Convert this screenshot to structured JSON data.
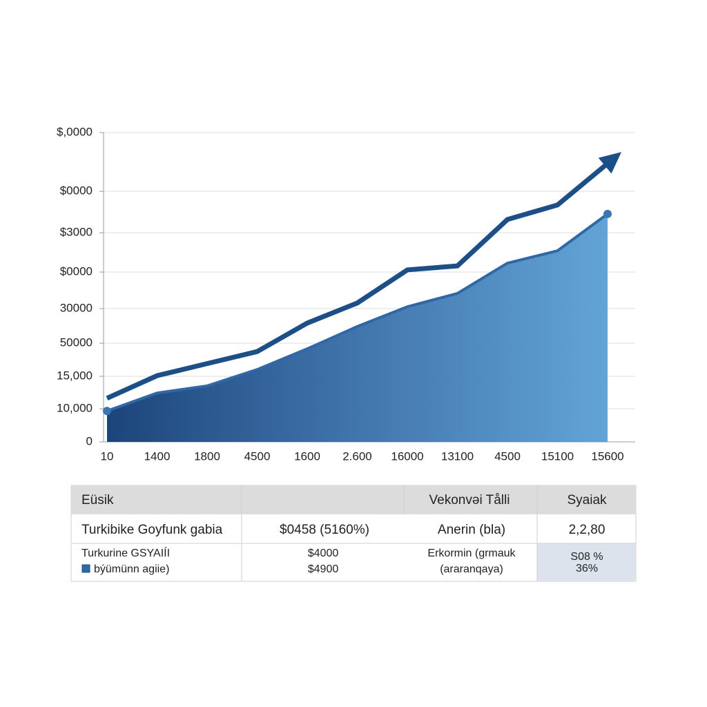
{
  "chart_data": {
    "type": "area-line",
    "categories": [
      "10",
      "1400",
      "1800",
      "4500",
      "1600",
      "2.600",
      "16000",
      "13100",
      "4500",
      "15100",
      "15600"
    ],
    "series": [
      {
        "color": "#1a4f8a",
        "values": [
          14100,
          21400,
          25300,
          29200,
          38400,
          44900,
          55600,
          56900,
          71900,
          76600,
          90000
        ]
      },
      {
        "color": "#2f68a8",
        "values": [
          10000,
          15800,
          18100,
          23400,
          30100,
          37300,
          43700,
          48000,
          57800,
          61800,
          73700
        ]
      }
    ],
    "ylim": [
      0,
      100000
    ],
    "yticks": [
      0,
      {
        "value": 10700,
        "label": "10,000"
      },
      {
        "value": 21200,
        "label": "15,000"
      },
      {
        "value": 31900,
        "label": "50000"
      },
      {
        "value": 43100,
        "label": "30000"
      },
      {
        "value": 54900,
        "label": "$0000"
      },
      {
        "value": 67600,
        "label": "$3000"
      },
      {
        "value": 81000,
        "label": "$0000"
      },
      {
        "value": 100000,
        "label": "$,0000"
      }
    ],
    "grid": true
  },
  "table": {
    "rows": [
      [
        "Eüsik",
        "Vekonvəi Tålli",
        "Syaiak"
      ],
      [
        "Turkibike Goyfunk gabia",
        "$0458 (5160%)",
        "Anerin (bla)",
        "2,2,80"
      ],
      [
        [
          "Turkurine GSYAIÍI",
          "býümünn agiie)"
        ],
        [
          "$4000",
          "$4900"
        ],
        [
          "Erkormin (grmauk",
          "(araranqaya)"
        ],
        [
          "S08 %",
          "36%"
        ]
      ]
    ]
  }
}
